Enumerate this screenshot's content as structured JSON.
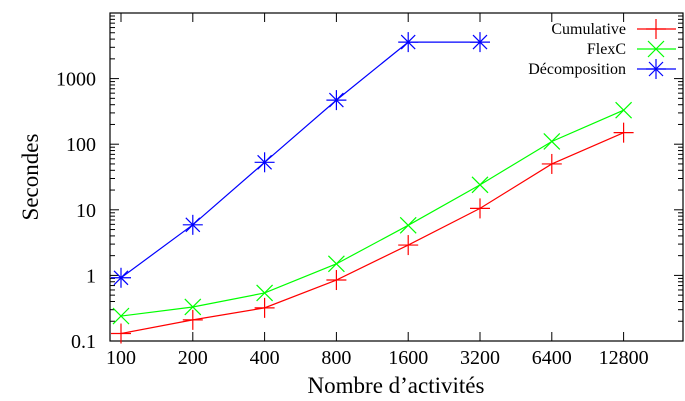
{
  "chart_data": {
    "type": "line",
    "xlabel": "Nombre d’activités",
    "ylabel": "Secondes",
    "x_scale": "log2-categorical",
    "y_scale": "log",
    "ylim": [
      0.1,
      10000
    ],
    "categories": [
      "100",
      "200",
      "400",
      "800",
      "1600",
      "3200",
      "6400",
      "12800"
    ],
    "y_ticks": [
      "0.1",
      "1",
      "10",
      "100",
      "1000"
    ],
    "y_tick_values": [
      0.1,
      1,
      10,
      100,
      1000
    ],
    "grid": false,
    "legend_position": "top-right",
    "series": [
      {
        "name": "Cumulative",
        "color": "#ff0000",
        "marker": "plus",
        "values": [
          0.13,
          0.21,
          0.32,
          0.85,
          2.9,
          10.5,
          50,
          150
        ]
      },
      {
        "name": "FlexC",
        "color": "#00ff00",
        "marker": "cross",
        "values": [
          0.24,
          0.33,
          0.54,
          1.5,
          5.8,
          24,
          110,
          330
        ]
      },
      {
        "name": "Décomposition",
        "color": "#0000ff",
        "marker": "star",
        "values": [
          0.92,
          5.9,
          53,
          470,
          3600,
          3600,
          null,
          null
        ]
      }
    ]
  }
}
